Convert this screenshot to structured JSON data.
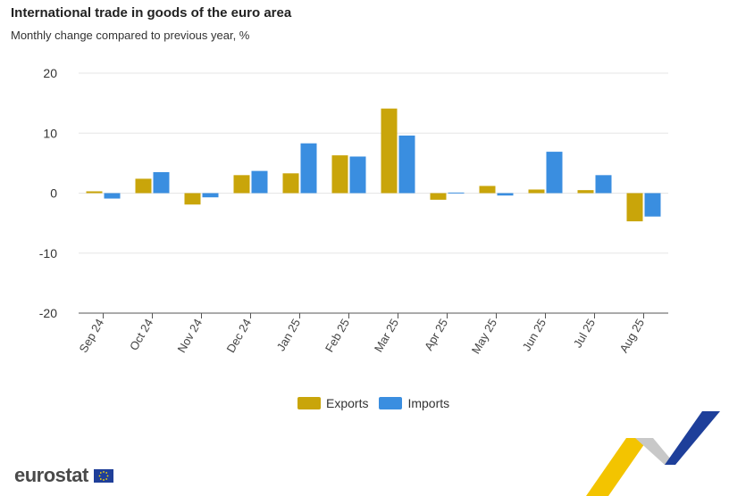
{
  "header": {
    "title": "International trade in goods of the euro area",
    "subtitle": "Monthly change compared to previous year, %"
  },
  "colors": {
    "exports": "#c9a50a",
    "imports": "#3a8ee0",
    "grid": "#e6e6e6",
    "axis": "#555555"
  },
  "legend": {
    "exports_label": "Exports",
    "imports_label": "Imports"
  },
  "brand": {
    "name": "eurostat"
  },
  "chart_data": {
    "type": "bar",
    "title": "International trade in goods of the euro area",
    "subtitle": "Monthly change compared to previous year, %",
    "categories": [
      "Sep 24",
      "Oct 24",
      "Nov 24",
      "Dec 24",
      "Jan 25",
      "Feb 25",
      "Mar 25",
      "Apr 25",
      "May 25",
      "Jun 25",
      "Jul 25",
      "Aug 25"
    ],
    "series": [
      {
        "name": "Exports",
        "values": [
          0.3,
          2.4,
          -1.9,
          3.0,
          3.3,
          6.3,
          14.1,
          -1.1,
          1.2,
          0.6,
          0.5,
          -4.7
        ]
      },
      {
        "name": "Imports",
        "values": [
          -0.9,
          3.5,
          -0.7,
          3.7,
          8.3,
          6.1,
          9.6,
          0.1,
          -0.4,
          6.9,
          3.0,
          -3.9
        ]
      }
    ],
    "yticks": [
      20,
      10,
      0,
      -10,
      -20
    ],
    "ylim": [
      -20,
      20
    ],
    "xlabel": "",
    "ylabel": "",
    "grid": true,
    "legend_position": "bottom-center"
  }
}
